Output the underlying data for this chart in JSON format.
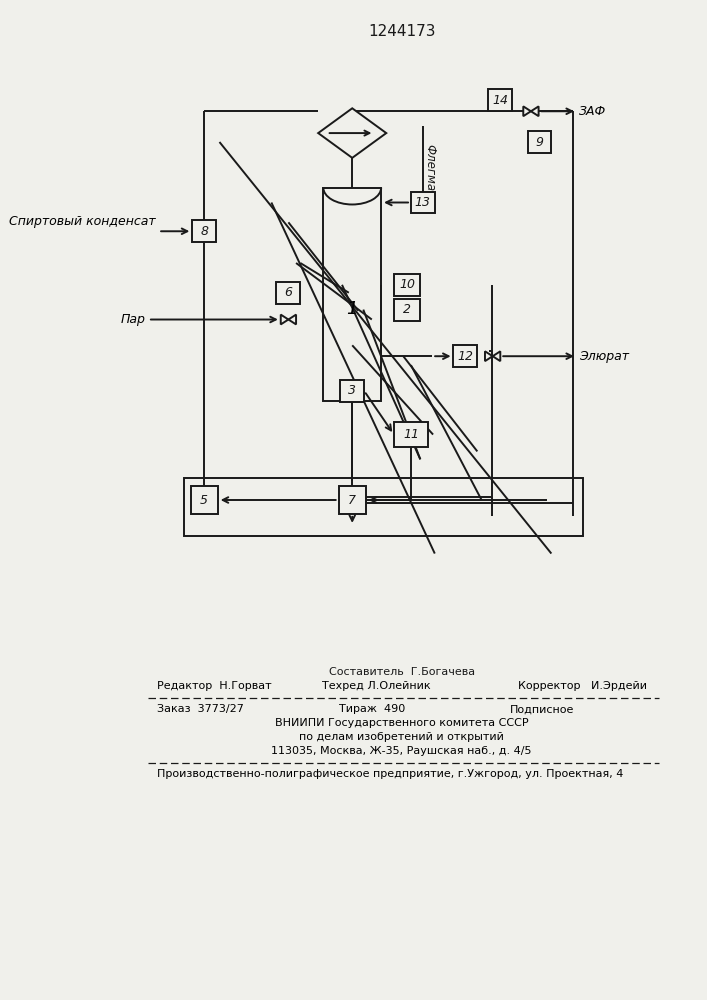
{
  "title": "1244173",
  "title_fontsize": 11,
  "bg_color": "#f0f0eb",
  "line_color": "#1a1a1a",
  "box_color": "#f0f0eb",
  "text_color": "#1a1a1a",
  "label_par": "Пар",
  "label_spirt": "Спиртовый конденсат",
  "label_zaf": "ЗАФ",
  "label_flegma": "Флегма",
  "label_elyurat": "Элюрат",
  "footer_line1": "Составитель  Г.Богачева",
  "footer_line2_left": "Редактор  Н.Горват",
  "footer_line2_mid": "Техред Л.Олейник",
  "footer_line2_right": "Корректор   И.Эрдейи",
  "footer_zakaz": "Заказ  3773/27",
  "footer_tirazh": "Тираж  490",
  "footer_podpisnoe": "Подписное",
  "footer_vniip": "ВНИИПИ Государственного комитета СССР",
  "footer_dela": "по делам изобретений и открытий",
  "footer_addr": "113035, Москва, Ж-35, Раушская наб., д. 4/5",
  "footer_prod": "Производственно-полиграфическое предприятие, г.Ужгород, ул. Проектная, 4"
}
